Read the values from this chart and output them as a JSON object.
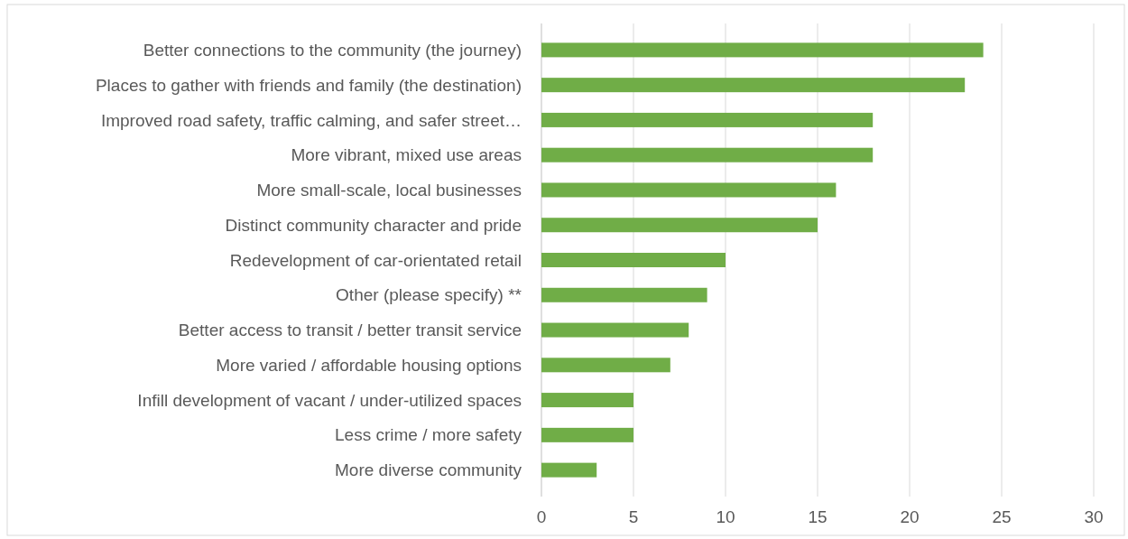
{
  "chart_data": {
    "type": "bar",
    "orientation": "horizontal",
    "categories": [
      "Better connections to the community (the journey)",
      "Places to gather with friends and family (the destination)",
      "Improved road safety, traffic calming, and safer street…",
      "More vibrant, mixed use areas",
      "More small-scale, local businesses",
      "Distinct community character and pride",
      "Redevelopment of car-orientated retail",
      "Other (please specify) **",
      "Better access to transit / better transit service",
      "More varied / affordable housing options",
      "Infill development of vacant / under-utilized spaces",
      "Less crime / more safety",
      "More diverse community"
    ],
    "values": [
      24,
      23,
      18,
      18,
      16,
      15,
      10,
      9,
      8,
      7,
      5,
      5,
      3
    ],
    "color": "#70ad47",
    "xlim": [
      0,
      30
    ],
    "xticks": [
      0,
      5,
      10,
      15,
      20,
      25,
      30
    ],
    "grid": "x"
  }
}
